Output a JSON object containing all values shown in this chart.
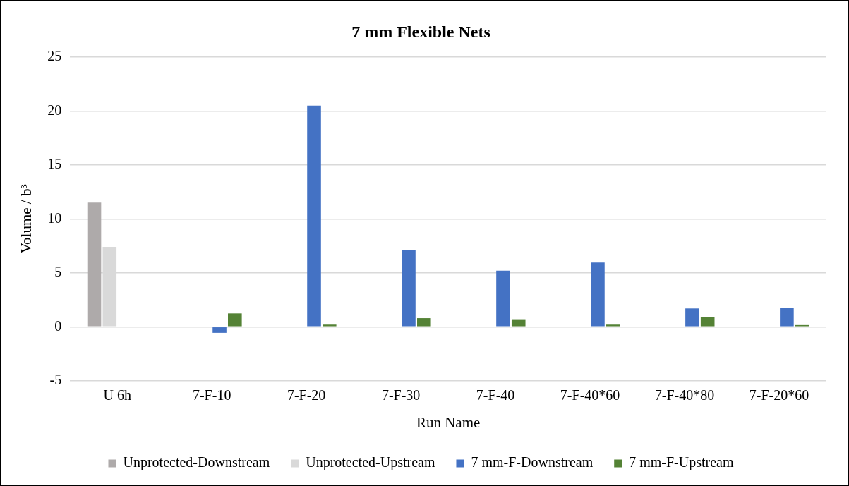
{
  "chart_data": {
    "type": "bar",
    "title": "7 mm Flexible Nets",
    "xlabel": "Run Name",
    "ylabel": "Volume / b³",
    "categories": [
      "U 6h",
      "7-F-10",
      "7-F-20",
      "7-F-30",
      "7-F-40",
      "7-F-40*60",
      "7-F-40*80",
      "7-F-20*60"
    ],
    "series": [
      {
        "name": "Unprotected-Downstream",
        "color": "#aeaaaa",
        "values": [
          11.5,
          null,
          null,
          null,
          null,
          null,
          null,
          null
        ]
      },
      {
        "name": "Unprotected-Upstream",
        "color": "#d9d9d9",
        "values": [
          7.4,
          null,
          null,
          null,
          null,
          null,
          null,
          null
        ]
      },
      {
        "name": "7 mm-F-Downstream",
        "color": "#4472c4",
        "values": [
          null,
          -0.56,
          20.5,
          7.1,
          5.2,
          5.95,
          1.7,
          1.77
        ]
      },
      {
        "name": "7 mm-F-Upstream",
        "color": "#548235",
        "values": [
          null,
          1.24,
          0.2,
          0.8,
          0.7,
          0.2,
          0.87,
          0.16
        ]
      }
    ],
    "ylim": [
      -5,
      25
    ],
    "yticks": [
      -5,
      0,
      5,
      10,
      15,
      20,
      25
    ],
    "grid": "y",
    "legend": "bottom"
  }
}
